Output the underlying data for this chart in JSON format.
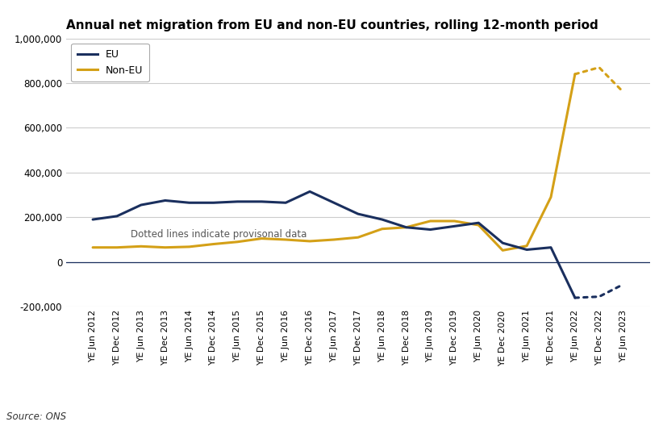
{
  "title": "Annual net migration from EU and non-EU countries, rolling 12-month period",
  "source": "Source: ONS",
  "annotation": "Dotted lines indicate provisonal data",
  "x_labels": [
    "YE Jun 2012",
    "YE Dec 2012",
    "YE Jun 2013",
    "YE Dec 2013",
    "YE Jun 2014",
    "YE Dec 2014",
    "YE Jun 2015",
    "YE Dec 2015",
    "YE Jun 2016",
    "YE Dec 2016",
    "YE Jun 2017",
    "YE Dec 2017",
    "YE Jun 2018",
    "YE Dec 2018",
    "YE Jun 2019",
    "YE Dec 2019",
    "YE Jun 2020",
    "YE Dec 2020",
    "YE Jun 2021",
    "YE Dec 2021",
    "YE Jun 2022",
    "YE Dec 2022",
    "YE Jun 2023"
  ],
  "eu_solid": [
    190000,
    205000,
    255000,
    275000,
    265000,
    265000,
    270000,
    270000,
    265000,
    315000,
    265000,
    215000,
    190000,
    155000,
    145000,
    160000,
    175000,
    85000,
    55000,
    65000,
    -160000,
    null,
    null
  ],
  "eu_dotted": [
    null,
    null,
    null,
    null,
    null,
    null,
    null,
    null,
    null,
    null,
    null,
    null,
    null,
    null,
    null,
    null,
    null,
    null,
    null,
    null,
    -160000,
    -155000,
    -100000
  ],
  "noneu_solid": [
    65000,
    65000,
    70000,
    65000,
    68000,
    80000,
    90000,
    105000,
    100000,
    93000,
    100000,
    110000,
    148000,
    155000,
    183000,
    183000,
    165000,
    52000,
    72000,
    290000,
    840000,
    null,
    null
  ],
  "noneu_dotted": [
    null,
    null,
    null,
    null,
    null,
    null,
    null,
    null,
    null,
    null,
    null,
    null,
    null,
    null,
    null,
    null,
    null,
    null,
    null,
    null,
    840000,
    870000,
    760000
  ],
  "eu_color": "#1a2f5e",
  "noneu_color": "#d4a017",
  "ylim": [
    -200000,
    1000000
  ],
  "yticks": [
    -200000,
    0,
    200000,
    400000,
    600000,
    800000,
    1000000
  ],
  "ytick_labels": [
    "-200,000",
    "0",
    "200,000",
    "400,000",
    "600,000",
    "800,000",
    "1,000,000"
  ],
  "bg_color": "#ffffff",
  "plot_bg_color": "#ffffff",
  "grid_color": "#cccccc",
  "linewidth": 2.2,
  "title_fontsize": 11,
  "tick_fontsize": 7.8,
  "ytick_fontsize": 8.5
}
